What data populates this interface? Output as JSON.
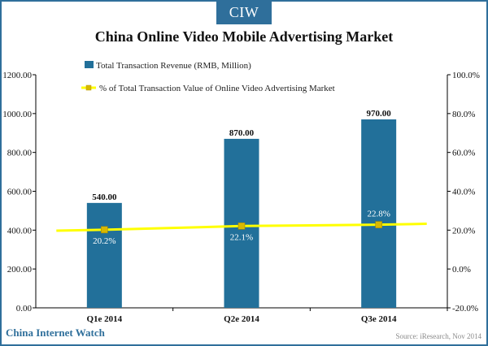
{
  "brand": {
    "badge": "CIW",
    "footer": "China Internet Watch"
  },
  "source": "Source: iResearch, Nov 2014",
  "colors": {
    "bar": "#22709a",
    "line": "#ffff00",
    "marker": "#d9b800",
    "frame": "#2f6f9b"
  },
  "chart_data": {
    "type": "bar",
    "title": "China Online Video Mobile Advertising Market",
    "categories": [
      "Q1e 2014",
      "Q2e 2014",
      "Q3e 2014"
    ],
    "series": [
      {
        "name": "Total Transaction Revenue (RMB, Million)",
        "type": "bar",
        "axis": "left",
        "values": [
          540,
          870,
          970
        ],
        "labels": [
          "540.00",
          "870.00",
          "970.00"
        ]
      },
      {
        "name": "% of Total Transaction Value of Online Video Advertising Market",
        "type": "line",
        "axis": "right",
        "values": [
          20.2,
          22.1,
          22.8
        ],
        "labels": [
          "20.2%",
          "22.1%",
          "22.8%"
        ]
      }
    ],
    "y_left": {
      "ylim": [
        0,
        1200
      ],
      "ticks": [
        "0.00",
        "200.00",
        "400.00",
        "600.00",
        "800.00",
        "1000.00",
        "1200.00"
      ]
    },
    "y_right": {
      "ylim": [
        -20,
        100
      ],
      "ticks": [
        "-20.0%",
        "0.0%",
        "20.0%",
        "40.0%",
        "60.0%",
        "80.0%",
        "100.0%"
      ]
    },
    "legend_position": "top"
  }
}
